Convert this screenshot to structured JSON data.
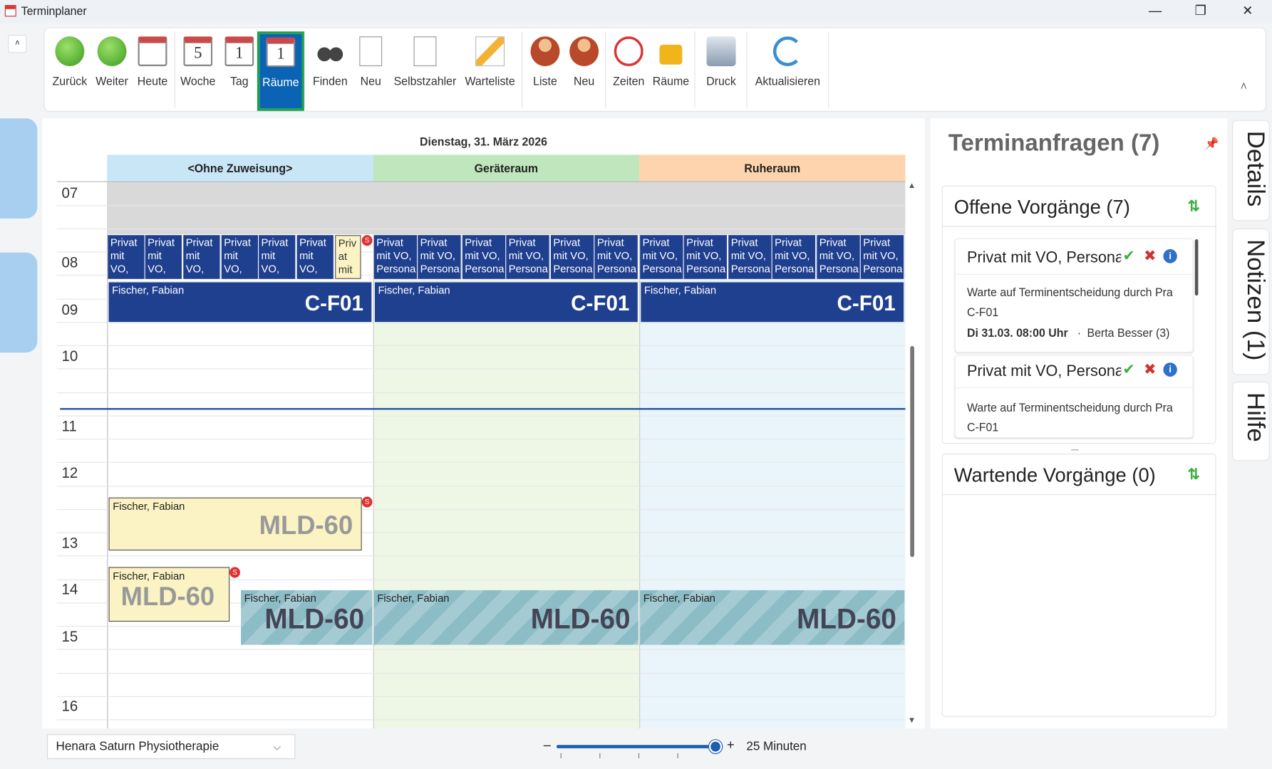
{
  "window": {
    "title": "Terminplaner",
    "minimize": "—",
    "restore": "❐",
    "close": "✕"
  },
  "ribbon": {
    "collapse_up": "˄",
    "buttons": [
      {
        "label": "Zurück"
      },
      {
        "label": "Weiter"
      },
      {
        "label": "Heute"
      },
      {
        "label": "Woche",
        "num": "5"
      },
      {
        "label": "Tag",
        "num": "1"
      },
      {
        "label": "Räume",
        "num": "1",
        "selected": true
      },
      {
        "label": "Finden"
      },
      {
        "label": "Neu"
      },
      {
        "label": "Selbstzahler"
      },
      {
        "label": "Warteliste"
      },
      {
        "label": "Liste"
      },
      {
        "label": "Neu"
      },
      {
        "label": "Zeiten"
      },
      {
        "label": "Räume"
      },
      {
        "label": "Druck"
      },
      {
        "label": "Aktualisieren"
      }
    ],
    "collapse_ribbon": "˄"
  },
  "calendar": {
    "date": "Dienstag, 31. März 2026",
    "columns": [
      {
        "name": "<Ohne Zuweisung>",
        "header_color": "#c9e6f7",
        "bg": "#ffffff"
      },
      {
        "name": "Geräteraum",
        "header_color": "#bfe6bd",
        "bg": "#eef7e6"
      },
      {
        "name": "Ruheraum",
        "header_color": "#fdd4ad",
        "bg": "#eaf4fb"
      }
    ],
    "hours": [
      "07",
      "08",
      "09",
      "10",
      "11",
      "12",
      "13",
      "14",
      "15",
      "16"
    ],
    "small_a": [
      "Privat",
      "mit",
      "VO,"
    ],
    "small_a_tag": "01",
    "small_b": [
      "Privat",
      "mit VO,",
      "Persona"
    ],
    "small_b_tag": "01",
    "small_yellow": [
      "Priv",
      "at",
      "mit"
    ],
    "self_pay_badge": "S",
    "patient": "Fischer, Fabian",
    "code_cf": "C-F01",
    "code_mld": "MLD-60",
    "scroll_up": "▲",
    "scroll_down": "▼"
  },
  "requests": {
    "title": "Terminanfragen (7)",
    "pin": "📌",
    "open_header": "Offene Vorgänge (7)",
    "waiting_header": "Wartende Vorgänge (0)",
    "sort": "⇅",
    "items": [
      {
        "title": "Privat mit VO, Persona",
        "status": "Warte auf Terminentscheidung durch Pra",
        "code": "C-F01",
        "when": "Di 31.03. 08:00 Uhr",
        "sep": "·",
        "by": "Berta Besser (3)"
      },
      {
        "title": "Privat mit VO, Persona",
        "status": "Warte auf Terminentscheidung durch Pra",
        "code": "C-F01"
      }
    ],
    "accept": "✔",
    "reject": "✖",
    "info": "i",
    "splitter": "....."
  },
  "side_tabs": [
    "Details",
    "Notizen (1)",
    "Hilfe"
  ],
  "footer": {
    "location": "Henara Saturn Physiotherapie",
    "minus": "–",
    "plus": "+",
    "zoom_label": "25 Minuten",
    "zoom_fraction": 0.95
  }
}
